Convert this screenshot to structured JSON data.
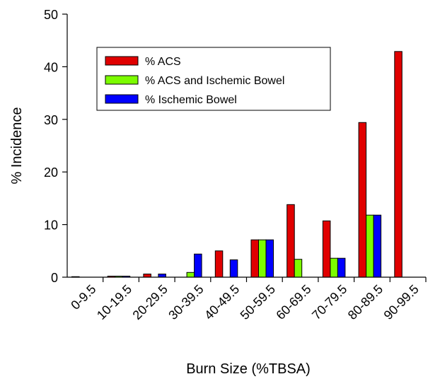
{
  "chart_data": {
    "type": "bar",
    "title": "",
    "xlabel": "Burn Size (%TBSA)",
    "ylabel": "% Incidence",
    "ylim": [
      0,
      50
    ],
    "yticks": [
      0,
      10,
      20,
      30,
      40,
      50
    ],
    "categories": [
      "0-9.5",
      "10-19.5",
      "20-29.5",
      "30-39.5",
      "40-49.5",
      "50-59.5",
      "60-69.5",
      "70-79.5",
      "80-89.5",
      "90-99.5"
    ],
    "series": [
      {
        "name": "% ACS",
        "color": "#e00000",
        "values": [
          0.1,
          0.2,
          0.6,
          0,
          5.0,
          7.1,
          13.8,
          10.7,
          29.4,
          42.9
        ]
      },
      {
        "name": "% ACS and Ischemic Bowel",
        "color": "#7cfc00",
        "values": [
          0,
          0.2,
          0,
          0.9,
          0,
          7.1,
          3.4,
          3.6,
          11.8,
          0
        ]
      },
      {
        "name": "% Ischemic Bowel",
        "color": "#0000ff",
        "values": [
          0,
          0.2,
          0.6,
          4.4,
          3.3,
          7.1,
          0,
          3.6,
          11.8,
          0
        ]
      }
    ],
    "legend_position": "top-left",
    "grid": false
  }
}
